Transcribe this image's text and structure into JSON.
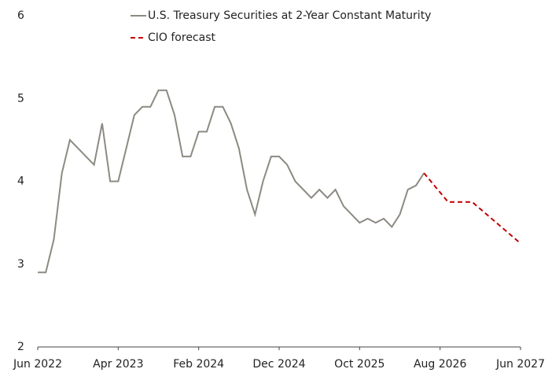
{
  "chart_data": {
    "type": "line",
    "series": [
      {
        "name": "U.S. Treasury Securities at 2-Year Constant Maturity",
        "color": "#8c8a82",
        "dash": "solid",
        "x": [
          "2022-06",
          "2022-07",
          "2022-08",
          "2022-09",
          "2022-10",
          "2022-11",
          "2022-12",
          "2023-01",
          "2023-02",
          "2023-03",
          "2023-04",
          "2023-05",
          "2023-06",
          "2023-07",
          "2023-08",
          "2023-09",
          "2023-10",
          "2023-11",
          "2023-12",
          "2024-01",
          "2024-02",
          "2024-03",
          "2024-04",
          "2024-05",
          "2024-06",
          "2024-07",
          "2024-08",
          "2024-09",
          "2024-10",
          "2024-11",
          "2024-12",
          "2025-01",
          "2025-02",
          "2025-03",
          "2025-04",
          "2025-05",
          "2025-06",
          "2025-07",
          "2025-08",
          "2025-09",
          "2025-10",
          "2025-11",
          "2025-12",
          "2026-01",
          "2026-02",
          "2026-03",
          "2026-04",
          "2026-05",
          "2026-06"
        ],
        "values": [
          2.9,
          2.9,
          3.3,
          4.1,
          4.5,
          4.4,
          4.3,
          4.2,
          4.7,
          4.0,
          4.0,
          4.4,
          4.8,
          4.9,
          4.9,
          5.1,
          5.1,
          4.8,
          4.3,
          4.3,
          4.6,
          4.6,
          4.9,
          4.9,
          4.7,
          4.4,
          3.9,
          3.6,
          4.0,
          4.3,
          4.3,
          4.2,
          4.0,
          3.9,
          3.8,
          3.9,
          3.8,
          3.9,
          3.7,
          3.6,
          3.5,
          3.55,
          3.5,
          3.55,
          3.45,
          3.6,
          3.9,
          3.95,
          4.1
        ]
      },
      {
        "name": "CIO forecast",
        "color": "#c00000",
        "dash": "dashed",
        "x": [
          "2026-06",
          "2026-09",
          "2026-12",
          "2027-06"
        ],
        "values": [
          4.1,
          3.75,
          3.75,
          3.25
        ]
      }
    ],
    "xlim": [
      "2022-06",
      "2027-06"
    ],
    "xticks": [
      {
        "value": "2022-06",
        "label": "Jun 2022"
      },
      {
        "value": "2023-04",
        "label": "Apr 2023"
      },
      {
        "value": "2024-02",
        "label": "Feb 2024"
      },
      {
        "value": "2024-12",
        "label": "Dec 2024"
      },
      {
        "value": "2025-10",
        "label": "Oct 2025"
      },
      {
        "value": "2026-08",
        "label": "Aug 2026"
      },
      {
        "value": "2027-06",
        "label": "Jun 2027"
      }
    ],
    "ylim": [
      2,
      6
    ],
    "yticks": [
      2,
      3,
      4,
      5,
      6
    ],
    "grid": false,
    "legend": "top-left"
  }
}
